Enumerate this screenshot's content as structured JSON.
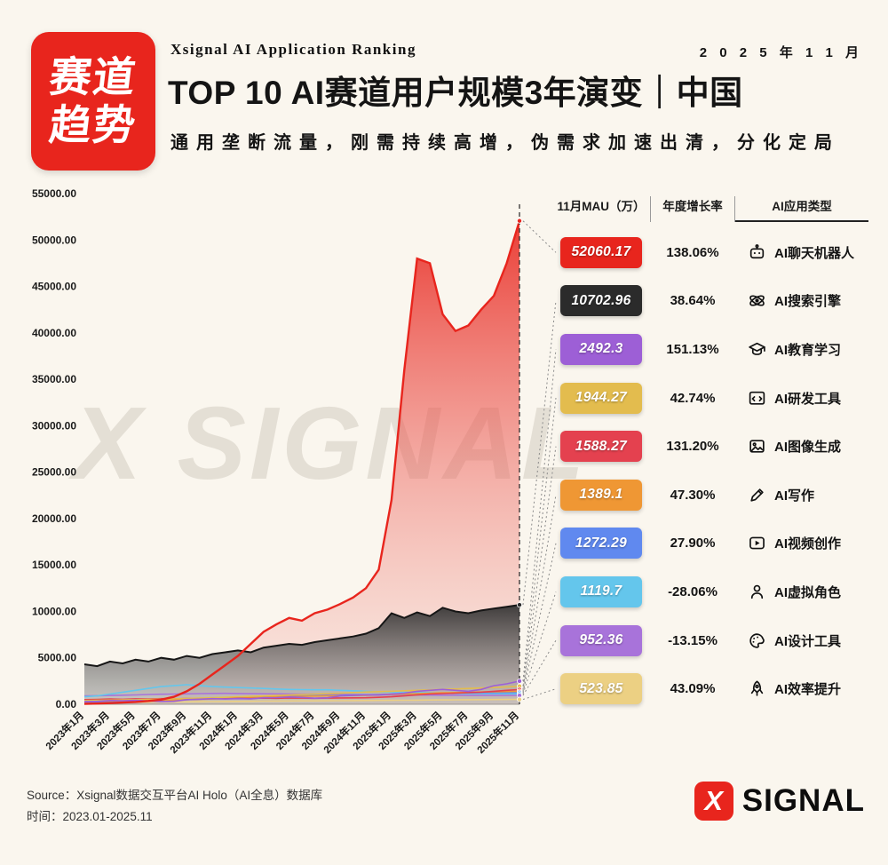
{
  "meta": {
    "date_label": "2 0 2 5 年 1 1 月"
  },
  "header": {
    "badge_line1": "赛道",
    "badge_line2": "趋势",
    "kicker": "Xsignal AI Application Ranking",
    "title": "TOP 10 AI赛道用户规模3年演变｜中国",
    "subtitle": "通用垄断流量，刚需持续高增，伪需求加速出清，分化定局"
  },
  "watermark": "X SIGNAL",
  "table": {
    "headers": [
      "11月MAU（万）",
      "年度增长率",
      "AI应用类型"
    ],
    "rows": [
      {
        "mau": "52060.17",
        "growth": "138.06%",
        "label": "AI聊天机器人",
        "color": "#e8251d",
        "icon": "robot-icon"
      },
      {
        "mau": "10702.96",
        "growth": "38.64%",
        "label": "AI搜索引擎",
        "color": "#2b2b2b",
        "icon": "search-engine-icon"
      },
      {
        "mau": "2492.3",
        "growth": "151.13%",
        "label": "AI教育学习",
        "color": "#9d5fd6",
        "icon": "graduation-cap-icon"
      },
      {
        "mau": "1944.27",
        "growth": "42.74%",
        "label": "AI研发工具",
        "color": "#e3bc4e",
        "icon": "code-window-icon"
      },
      {
        "mau": "1588.27",
        "growth": "131.20%",
        "label": "AI图像生成",
        "color": "#e4414f",
        "icon": "image-icon"
      },
      {
        "mau": "1389.1",
        "growth": "47.30%",
        "label": "AI写作",
        "color": "#ef9734",
        "icon": "pen-icon"
      },
      {
        "mau": "1272.29",
        "growth": "27.90%",
        "label": "AI视频创作",
        "color": "#6089ef",
        "icon": "video-icon"
      },
      {
        "mau": "1119.7",
        "growth": "-28.06%",
        "label": "AI虚拟角色",
        "color": "#64c6ec",
        "icon": "avatar-icon"
      },
      {
        "mau": "952.36",
        "growth": "-13.15%",
        "label": "AI设计工具",
        "color": "#a873da",
        "icon": "palette-icon"
      },
      {
        "mau": "523.85",
        "growth": "43.09%",
        "label": "AI效率提升",
        "color": "#ecd083",
        "icon": "rocket-icon"
      }
    ]
  },
  "footer": {
    "source": "Source：Xsignal数据交互平台AI Holo（AI全息）数据库",
    "time": "时间：2023.01-2025.11",
    "logo_x": "X",
    "logo_text": "SIGNAL"
  },
  "chart_data": {
    "type": "area",
    "title": "TOP 10 AI赛道用户规模3年演变（月度MAU，万）",
    "xlabel": "",
    "ylabel": "MAU（万）",
    "ylim": [
      0,
      55000
    ],
    "grid": false,
    "legend_position": "none",
    "y_ticks": [
      "0.00",
      "5000.00",
      "10000.00",
      "15000.00",
      "20000.00",
      "25000.00",
      "30000.00",
      "35000.00",
      "40000.00",
      "45000.00",
      "50000.00",
      "55000.00"
    ],
    "x_tick_labels": [
      "2023年1月",
      "2023年3月",
      "2023年5月",
      "2023年7月",
      "2023年9月",
      "2023年11月",
      "2024年1月",
      "2024年3月",
      "2024年5月",
      "2024年7月",
      "2024年9月",
      "2024年11月",
      "2025年1月",
      "2025年3月",
      "2025年5月",
      "2025年7月",
      "2025年9月",
      "2025年11月"
    ],
    "series": [
      {
        "name": "AI聊天机器人",
        "color": "#e8251d",
        "fill": "red-gradient",
        "values": [
          50,
          80,
          120,
          180,
          250,
          350,
          500,
          800,
          1400,
          2200,
          3200,
          4200,
          5200,
          6500,
          7800,
          8600,
          9300,
          9000,
          9800,
          10200,
          10800,
          11500,
          12500,
          14500,
          22000,
          36000,
          48000,
          47500,
          42000,
          40200,
          40800,
          42500,
          44000,
          47500,
          52060.17
        ]
      },
      {
        "name": "AI搜索引擎",
        "color": "#2b2b2b",
        "fill": "gray-gradient",
        "values": [
          4300,
          4100,
          4600,
          4400,
          4800,
          4600,
          5000,
          4800,
          5200,
          5000,
          5400,
          5600,
          5800,
          5600,
          6100,
          6300,
          6500,
          6400,
          6700,
          6900,
          7100,
          7300,
          7600,
          8200,
          9800,
          9300,
          9900,
          9500,
          10400,
          10000,
          9800,
          10100,
          10300,
          10500,
          10702.96
        ]
      },
      {
        "name": "AI教育学习",
        "color": "#9d5fd6",
        "fill": "none",
        "values": [
          300,
          320,
          400,
          380,
          420,
          350,
          300,
          320,
          500,
          550,
          600,
          560,
          600,
          580,
          700,
          720,
          780,
          740,
          650,
          700,
          900,
          950,
          1000,
          990,
          1100,
          1200,
          1400,
          1500,
          1600,
          1500,
          1400,
          1600,
          2000,
          2200,
          2492.3
        ]
      },
      {
        "name": "AI研发工具",
        "color": "#e3bc4e",
        "fill": "none",
        "values": [
          400,
          420,
          450,
          470,
          500,
          520,
          550,
          580,
          620,
          660,
          700,
          750,
          800,
          850,
          900,
          950,
          1000,
          1050,
          1100,
          1150,
          1200,
          1260,
          1320,
          1360,
          1400,
          1450,
          1500,
          1550,
          1600,
          1650,
          1700,
          1750,
          1800,
          1870,
          1944.27
        ]
      },
      {
        "name": "AI图像生成",
        "color": "#e4414f",
        "fill": "none",
        "values": [
          500,
          520,
          560,
          540,
          580,
          560,
          600,
          580,
          620,
          600,
          640,
          620,
          640,
          620,
          660,
          640,
          680,
          660,
          640,
          660,
          680,
          687,
          700,
          750,
          800,
          900,
          1000,
          1100,
          1150,
          1200,
          1250,
          1300,
          1400,
          1500,
          1588.27
        ]
      },
      {
        "name": "AI写作",
        "color": "#ef9734",
        "fill": "none",
        "values": [
          300,
          320,
          350,
          380,
          400,
          420,
          450,
          470,
          500,
          530,
          560,
          600,
          650,
          700,
          750,
          800,
          830,
          860,
          880,
          900,
          920,
          943,
          960,
          1000,
          1050,
          1100,
          1150,
          1200,
          1230,
          1260,
          1290,
          1320,
          1350,
          1370,
          1389.1
        ]
      },
      {
        "name": "AI视频创作",
        "color": "#6089ef",
        "fill": "none",
        "values": [
          200,
          220,
          260,
          300,
          340,
          380,
          420,
          460,
          500,
          550,
          600,
          650,
          700,
          750,
          800,
          850,
          880,
          910,
          930,
          950,
          970,
          995,
          1010,
          1040,
          1080,
          1100,
          1130,
          1160,
          1180,
          1200,
          1220,
          1240,
          1250,
          1260,
          1272.29
        ]
      },
      {
        "name": "AI虚拟角色",
        "color": "#64c6ec",
        "fill": "none",
        "values": [
          800,
          900,
          1100,
          1300,
          1500,
          1700,
          1900,
          2000,
          2100,
          2000,
          1900,
          1850,
          1800,
          1750,
          1700,
          1650,
          1600,
          1580,
          1560,
          1556,
          1500,
          1450,
          1400,
          1350,
          1300,
          1280,
          1250,
          1230,
          1200,
          1180,
          1160,
          1150,
          1140,
          1130,
          1119.7
        ]
      },
      {
        "name": "AI设计工具",
        "color": "#a873da",
        "fill": "none",
        "values": [
          900,
          920,
          950,
          980,
          1000,
          1050,
          1080,
          1100,
          1120,
          1150,
          1170,
          1180,
          1160,
          1140,
          1130,
          1120,
          1110,
          1100,
          1096,
          1080,
          1060,
          1040,
          1020,
          1010,
          1000,
          995,
          990,
          985,
          980,
          975,
          970,
          965,
          960,
          955,
          952.36
        ]
      },
      {
        "name": "AI效率提升",
        "color": "#ecd083",
        "fill": "none",
        "values": [
          150,
          160,
          180,
          200,
          210,
          220,
          240,
          250,
          260,
          280,
          290,
          300,
          310,
          320,
          330,
          340,
          350,
          360,
          366,
          370,
          380,
          390,
          400,
          410,
          420,
          430,
          440,
          455,
          470,
          480,
          490,
          500,
          510,
          515,
          523.85
        ]
      }
    ]
  }
}
